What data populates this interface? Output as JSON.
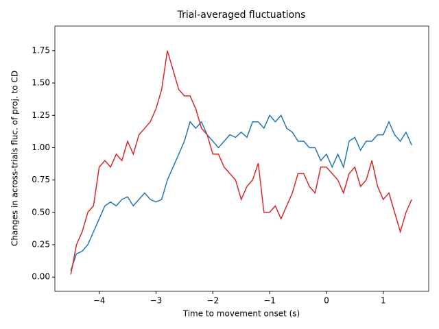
{
  "chart_data": {
    "type": "line",
    "title": "Trial-averaged fluctuations",
    "x_label": "Time to movement onset (s)",
    "y_label": "Changes in across-trials fluc. of proj. to CD",
    "x": [
      -4.5,
      -4.4,
      -4.3,
      -4.2,
      -4.1,
      -4.0,
      -3.9,
      -3.8,
      -3.7,
      -3.6,
      -3.5,
      -3.4,
      -3.3,
      -3.2,
      -3.1,
      -3.0,
      -2.9,
      -2.8,
      -2.7,
      -2.6,
      -2.5,
      -2.4,
      -2.3,
      -2.2,
      -2.1,
      -2.0,
      -1.9,
      -1.8,
      -1.7,
      -1.6,
      -1.5,
      -1.4,
      -1.3,
      -1.2,
      -1.1,
      -1.0,
      -0.9,
      -0.8,
      -0.7,
      -0.6,
      -0.5,
      -0.4,
      -0.3,
      -0.2,
      -0.1,
      0.0,
      0.1,
      0.2,
      0.3,
      0.4,
      0.5,
      0.6,
      0.7,
      0.8,
      0.9,
      1.0,
      1.1,
      1.2,
      1.3,
      1.4,
      1.5
    ],
    "series": [
      {
        "color": "#1f77b4",
        "values": [
          0.05,
          0.18,
          0.2,
          0.25,
          0.35,
          0.45,
          0.55,
          0.58,
          0.55,
          0.6,
          0.62,
          0.55,
          0.6,
          0.65,
          0.6,
          0.58,
          0.6,
          0.75,
          0.85,
          0.95,
          1.05,
          1.2,
          1.15,
          1.2,
          1.1,
          1.05,
          1.0,
          1.05,
          1.1,
          1.08,
          1.12,
          1.08,
          1.2,
          1.2,
          1.15,
          1.25,
          1.2,
          1.25,
          1.15,
          1.12,
          1.05,
          1.05,
          1.0,
          1.0,
          0.9,
          0.95,
          0.85,
          0.95,
          0.85,
          1.05,
          1.08,
          0.98,
          1.05,
          1.05,
          1.1,
          1.1,
          1.2,
          1.1,
          1.05,
          1.12,
          1.02
        ]
      },
      {
        "color": "#d62728",
        "values": [
          0.02,
          0.25,
          0.35,
          0.5,
          0.55,
          0.85,
          0.9,
          0.85,
          0.95,
          0.9,
          1.05,
          0.95,
          1.1,
          1.15,
          1.2,
          1.3,
          1.45,
          1.75,
          1.6,
          1.45,
          1.4,
          1.4,
          1.3,
          1.15,
          1.1,
          0.95,
          0.95,
          0.85,
          0.8,
          0.75,
          0.6,
          0.7,
          0.75,
          0.88,
          0.5,
          0.5,
          0.55,
          0.45,
          0.55,
          0.65,
          0.8,
          0.8,
          0.7,
          0.65,
          0.85,
          0.85,
          0.8,
          0.75,
          0.65,
          0.8,
          0.85,
          0.7,
          0.75,
          0.9,
          0.7,
          0.6,
          0.65,
          0.5,
          0.35,
          0.5,
          0.6
        ]
      }
    ],
    "xlim": [
      -4.78,
      1.8
    ],
    "ylim": [
      -0.11,
      1.94
    ],
    "xticks": [
      {
        "value": -4,
        "label": "−4"
      },
      {
        "value": -3,
        "label": "−3"
      },
      {
        "value": -2,
        "label": "−2"
      },
      {
        "value": -1,
        "label": "−1"
      },
      0,
      1
    ],
    "yticks": [
      {
        "value": 0,
        "label": "0.00"
      },
      {
        "value": 0.25,
        "label": "0.25"
      },
      {
        "value": 0.5,
        "label": "0.50"
      },
      {
        "value": 0.75,
        "label": "0.75"
      },
      {
        "value": 1,
        "label": "1.00"
      },
      {
        "value": 1.25,
        "label": "1.25"
      },
      {
        "value": 1.5,
        "label": "1.50"
      },
      {
        "value": 1.75,
        "label": "1.75"
      }
    ]
  }
}
